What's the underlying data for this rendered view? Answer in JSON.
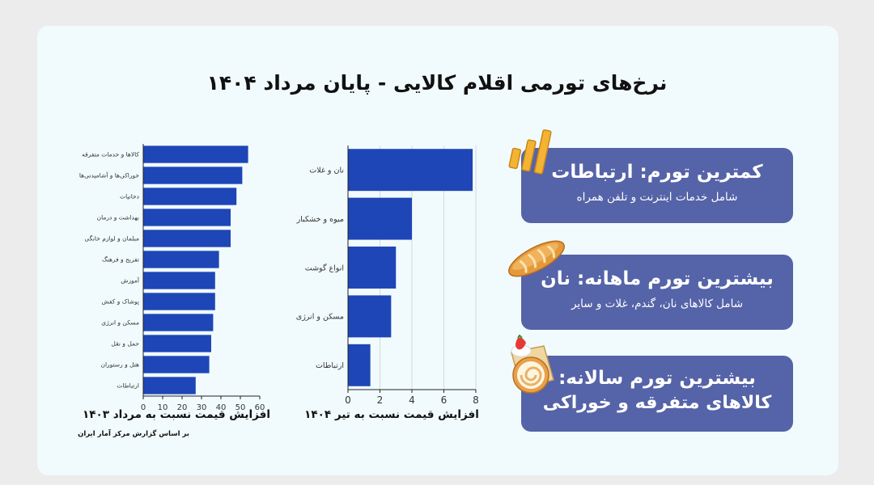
{
  "title": "نرخ‌های تورمی اقلام کالایی - پایان مرداد ۱۴۰۴",
  "chart_data": [
    {
      "type": "bar",
      "orientation": "horizontal",
      "categories": [
        "کالاها و خدمات متفرقه",
        "خوراکی‌ها و آشامیدنی‌ها",
        "دخانیات",
        "بهداشت و درمان",
        "مبلمان و لوازم خانگی",
        "تفریح و فرهنگ",
        "آموزش",
        "پوشاک و کفش",
        "مسکن و انرژی",
        "حمل و نقل",
        "هتل و رستوران",
        "ارتباطات"
      ],
      "values": [
        54,
        51,
        48,
        45,
        45,
        39,
        37,
        37,
        36,
        35,
        34,
        27
      ],
      "xlabel": "افزایش قیمت نسبت به مرداد ۱۴۰۳",
      "xlim": [
        0,
        60
      ],
      "xticks": [
        0,
        10,
        20,
        30,
        40,
        50,
        60
      ],
      "color": "#1e46b7"
    },
    {
      "type": "bar",
      "orientation": "horizontal",
      "categories": [
        "نان و غلات",
        "میوه و خشکبار",
        "انواع گوشت",
        "مسکن و انرژی",
        "ارتباطات"
      ],
      "values": [
        7.8,
        4.0,
        3.0,
        2.7,
        1.4
      ],
      "xlabel": "افزایش قیمت نسبت به تیر ۱۴۰۴",
      "xlim": [
        0,
        8
      ],
      "xticks": [
        0,
        2,
        4,
        6,
        8
      ],
      "grid": true,
      "color": "#1e46b7"
    }
  ],
  "source_note": "بر اساس گزارش مرکز آمار ایران",
  "boxes": [
    {
      "headline": "کمترین تورم: ارتباطات",
      "subtitle": "شامل خدمات اینترنت و تلفن همراه",
      "icon": "signal-bars-icon"
    },
    {
      "headline": "بیشترین تورم ماهانه: نان",
      "subtitle": "شامل کالاهای نان، گندم، غلات و سایر",
      "icon": "bread-icon"
    },
    {
      "headline": "بیشترین تورم سالانه:",
      "subtitle": "کالاهای متفرقه و خوراکی",
      "icon": "cake-roll-icon"
    }
  ],
  "colors": {
    "box": "#5563a8",
    "bar": "#1e46b7",
    "card": "#f1fbfd"
  }
}
